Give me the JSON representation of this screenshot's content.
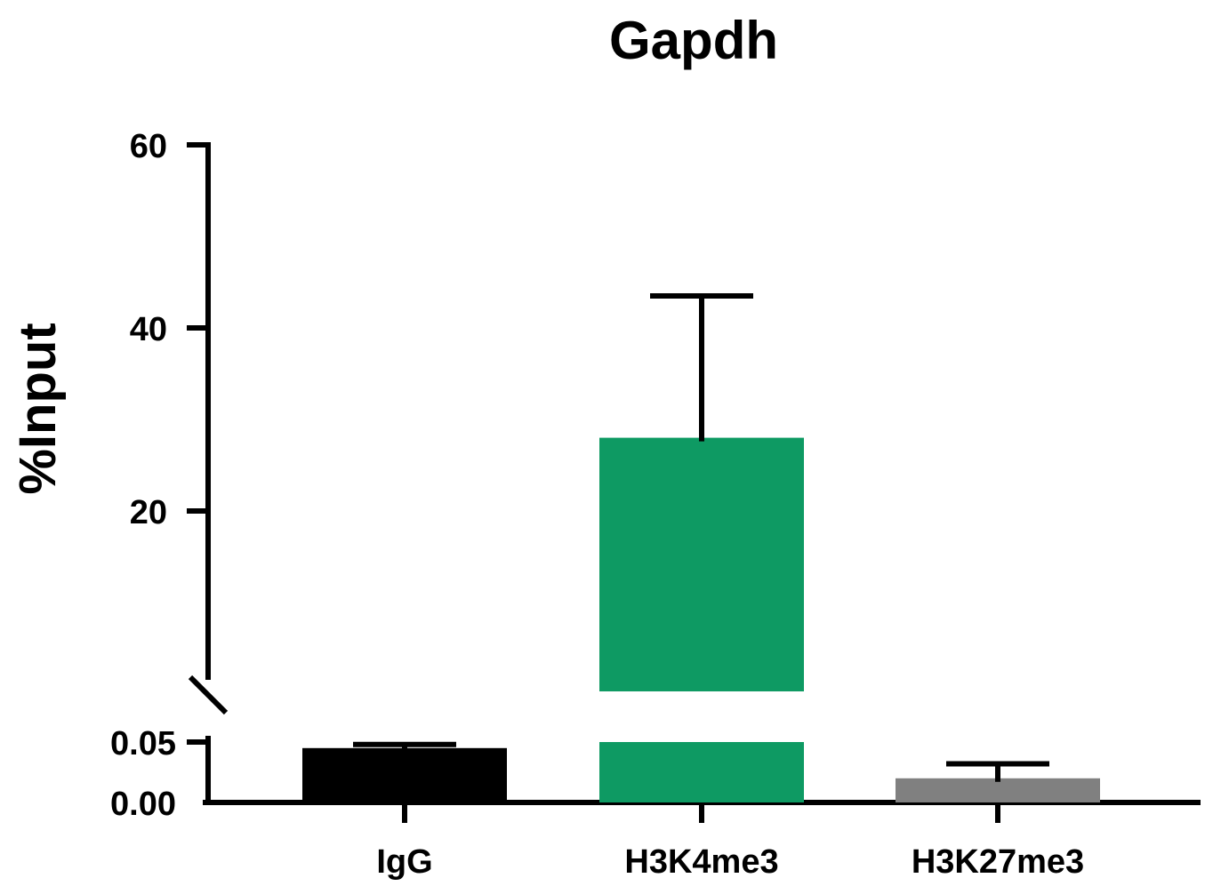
{
  "chart_data": {
    "type": "bar",
    "title": "Gapdh",
    "ylabel": "%Input",
    "xlabel": "",
    "categories": [
      "IgG",
      "H3K4me3",
      "H3K27me3"
    ],
    "values": [
      0.045,
      28,
      0.02
    ],
    "errors": [
      0.003,
      15.5,
      0.012
    ],
    "colors": [
      "#000000",
      "#0e9a63",
      "#808080"
    ],
    "y_axis_broken": true,
    "segments": {
      "lower": {
        "ylim": [
          0.0,
          0.055
        ],
        "ticks": [
          0.0,
          0.05
        ],
        "tick_labels": [
          "0.00",
          "0.05"
        ]
      },
      "upper": {
        "ylim": [
          0,
          60
        ],
        "ticks": [
          20,
          40,
          60
        ],
        "tick_labels": [
          "20",
          "40",
          "60"
        ]
      }
    },
    "grid": false,
    "legend": "none"
  }
}
